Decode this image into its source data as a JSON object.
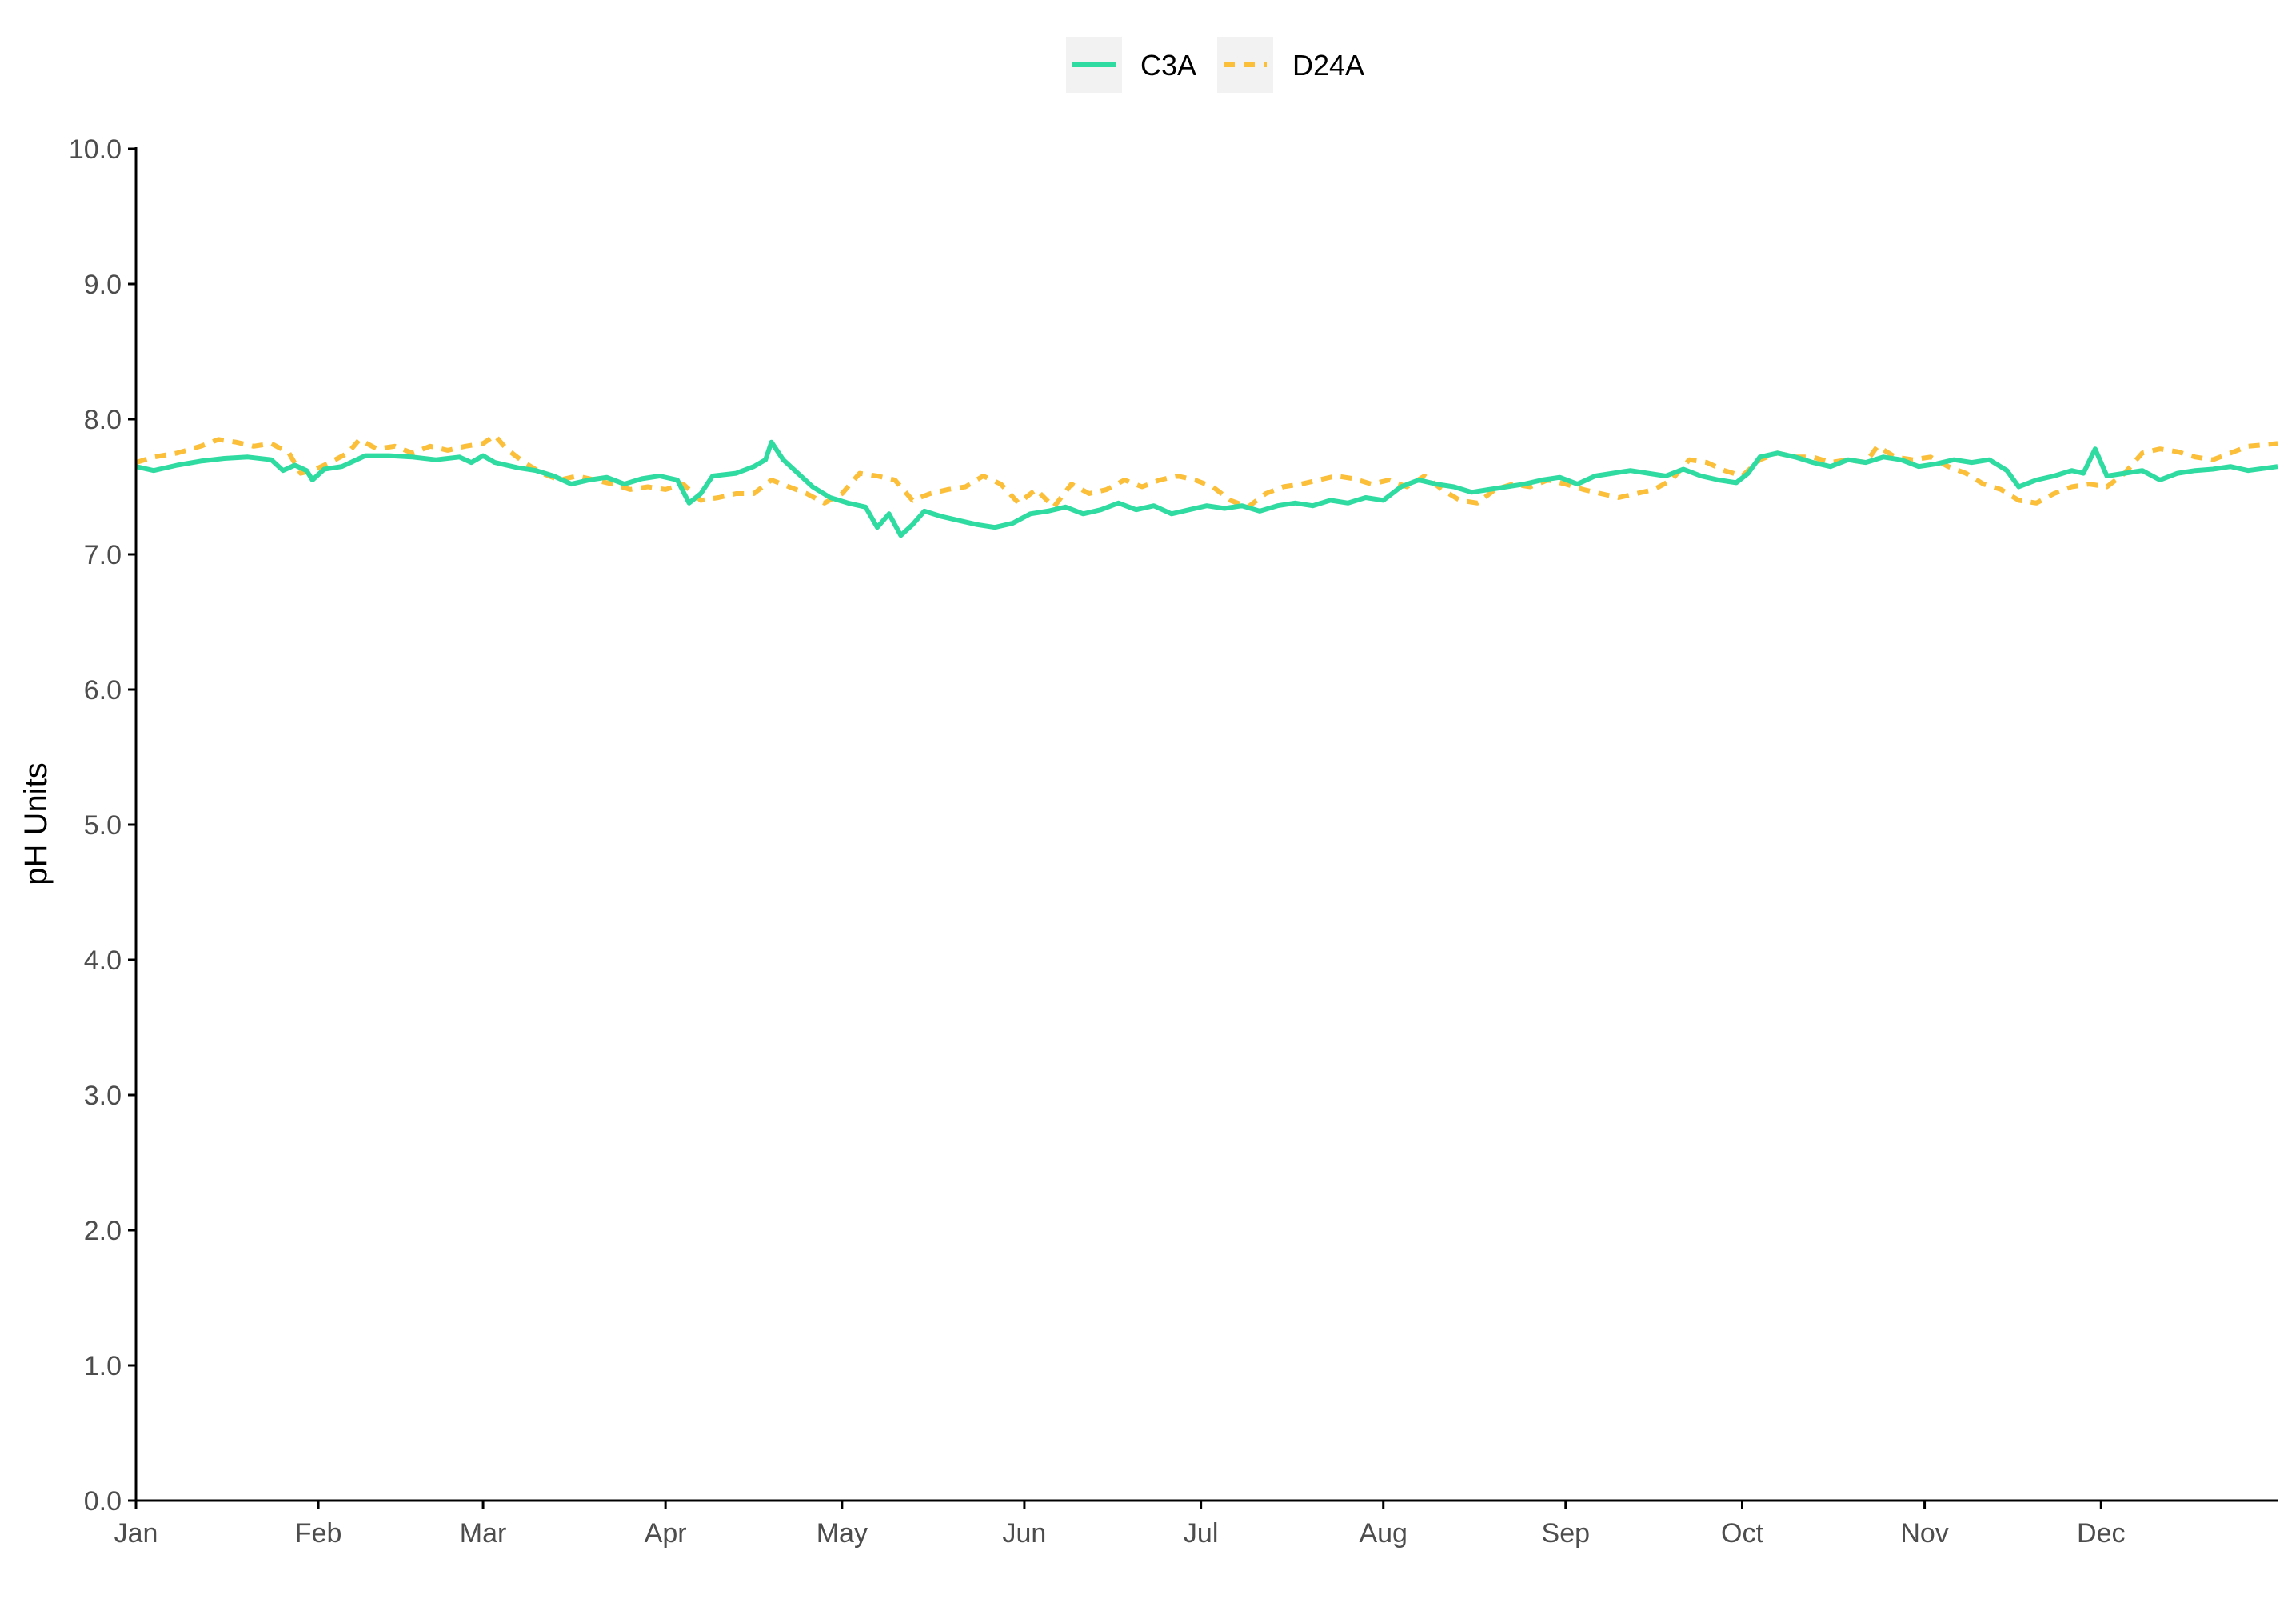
{
  "chart_data": {
    "type": "line",
    "title": "",
    "xlabel": "",
    "ylabel": "pH Units",
    "ylim": [
      0,
      10
    ],
    "yticks": [
      "0.0",
      "1.0",
      "2.0",
      "3.0",
      "4.0",
      "5.0",
      "6.0",
      "7.0",
      "8.0",
      "9.0",
      "10.0"
    ],
    "xlim_day": [
      1,
      365
    ],
    "month_ticks": [
      {
        "label": "Jan",
        "day": 1
      },
      {
        "label": "Feb",
        "day": 32
      },
      {
        "label": "Mar",
        "day": 60
      },
      {
        "label": "Apr",
        "day": 91
      },
      {
        "label": "May",
        "day": 121
      },
      {
        "label": "Jun",
        "day": 152
      },
      {
        "label": "Jul",
        "day": 182
      },
      {
        "label": "Aug",
        "day": 213
      },
      {
        "label": "Sep",
        "day": 244
      },
      {
        "label": "Oct",
        "day": 274
      },
      {
        "label": "Nov",
        "day": 305
      },
      {
        "label": "Dec",
        "day": 335
      }
    ],
    "legend_position": "top",
    "grid": false,
    "series": [
      {
        "name": "C3A",
        "color": "#2fdba0",
        "dash": "solid",
        "points": [
          [
            1,
            7.65
          ],
          [
            4,
            7.62
          ],
          [
            8,
            7.66
          ],
          [
            12,
            7.69
          ],
          [
            16,
            7.71
          ],
          [
            20,
            7.72
          ],
          [
            24,
            7.7
          ],
          [
            26,
            7.62
          ],
          [
            28,
            7.66
          ],
          [
            30,
            7.62
          ],
          [
            31,
            7.55
          ],
          [
            33,
            7.63
          ],
          [
            36,
            7.65
          ],
          [
            40,
            7.73
          ],
          [
            44,
            7.73
          ],
          [
            48,
            7.72
          ],
          [
            52,
            7.7
          ],
          [
            56,
            7.72
          ],
          [
            58,
            7.68
          ],
          [
            60,
            7.73
          ],
          [
            62,
            7.68
          ],
          [
            66,
            7.64
          ],
          [
            69,
            7.62
          ],
          [
            72,
            7.58
          ],
          [
            75,
            7.52
          ],
          [
            78,
            7.55
          ],
          [
            81,
            7.57
          ],
          [
            84,
            7.52
          ],
          [
            87,
            7.56
          ],
          [
            90,
            7.58
          ],
          [
            93,
            7.55
          ],
          [
            95,
            7.38
          ],
          [
            97,
            7.45
          ],
          [
            99,
            7.58
          ],
          [
            103,
            7.6
          ],
          [
            106,
            7.65
          ],
          [
            108,
            7.7
          ],
          [
            109,
            7.83
          ],
          [
            111,
            7.7
          ],
          [
            113,
            7.62
          ],
          [
            116,
            7.5
          ],
          [
            119,
            7.42
          ],
          [
            122,
            7.38
          ],
          [
            125,
            7.35
          ],
          [
            127,
            7.2
          ],
          [
            129,
            7.3
          ],
          [
            131,
            7.14
          ],
          [
            133,
            7.22
          ],
          [
            135,
            7.32
          ],
          [
            138,
            7.28
          ],
          [
            141,
            7.25
          ],
          [
            144,
            7.22
          ],
          [
            147,
            7.2
          ],
          [
            150,
            7.23
          ],
          [
            153,
            7.3
          ],
          [
            156,
            7.32
          ],
          [
            159,
            7.35
          ],
          [
            162,
            7.3
          ],
          [
            165,
            7.33
          ],
          [
            168,
            7.38
          ],
          [
            171,
            7.33
          ],
          [
            174,
            7.36
          ],
          [
            177,
            7.3
          ],
          [
            180,
            7.33
          ],
          [
            183,
            7.36
          ],
          [
            186,
            7.34
          ],
          [
            189,
            7.36
          ],
          [
            192,
            7.32
          ],
          [
            195,
            7.36
          ],
          [
            198,
            7.38
          ],
          [
            201,
            7.36
          ],
          [
            204,
            7.4
          ],
          [
            207,
            7.38
          ],
          [
            210,
            7.42
          ],
          [
            213,
            7.4
          ],
          [
            216,
            7.5
          ],
          [
            219,
            7.55
          ],
          [
            222,
            7.52
          ],
          [
            225,
            7.5
          ],
          [
            228,
            7.46
          ],
          [
            231,
            7.48
          ],
          [
            234,
            7.5
          ],
          [
            237,
            7.52
          ],
          [
            240,
            7.55
          ],
          [
            243,
            7.57
          ],
          [
            246,
            7.52
          ],
          [
            249,
            7.58
          ],
          [
            252,
            7.6
          ],
          [
            255,
            7.62
          ],
          [
            258,
            7.6
          ],
          [
            261,
            7.58
          ],
          [
            264,
            7.63
          ],
          [
            267,
            7.58
          ],
          [
            270,
            7.55
          ],
          [
            273,
            7.53
          ],
          [
            275,
            7.6
          ],
          [
            277,
            7.72
          ],
          [
            280,
            7.75
          ],
          [
            283,
            7.72
          ],
          [
            286,
            7.68
          ],
          [
            289,
            7.65
          ],
          [
            292,
            7.7
          ],
          [
            295,
            7.68
          ],
          [
            298,
            7.72
          ],
          [
            301,
            7.7
          ],
          [
            304,
            7.65
          ],
          [
            307,
            7.67
          ],
          [
            310,
            7.7
          ],
          [
            313,
            7.68
          ],
          [
            316,
            7.7
          ],
          [
            319,
            7.62
          ],
          [
            321,
            7.5
          ],
          [
            324,
            7.55
          ],
          [
            327,
            7.58
          ],
          [
            330,
            7.62
          ],
          [
            332,
            7.6
          ],
          [
            334,
            7.78
          ],
          [
            336,
            7.58
          ],
          [
            339,
            7.6
          ],
          [
            342,
            7.62
          ],
          [
            345,
            7.55
          ],
          [
            348,
            7.6
          ],
          [
            351,
            7.62
          ],
          [
            354,
            7.63
          ],
          [
            357,
            7.65
          ],
          [
            360,
            7.62
          ],
          [
            365,
            7.65
          ]
        ]
      },
      {
        "name": "D24A",
        "color": "#fbbf3a",
        "dash": "dashed",
        "points": [
          [
            1,
            7.68
          ],
          [
            4,
            7.72
          ],
          [
            8,
            7.75
          ],
          [
            12,
            7.8
          ],
          [
            15,
            7.85
          ],
          [
            18,
            7.83
          ],
          [
            21,
            7.8
          ],
          [
            24,
            7.82
          ],
          [
            27,
            7.75
          ],
          [
            29,
            7.6
          ],
          [
            31,
            7.62
          ],
          [
            34,
            7.68
          ],
          [
            37,
            7.75
          ],
          [
            39,
            7.85
          ],
          [
            42,
            7.78
          ],
          [
            45,
            7.8
          ],
          [
            48,
            7.75
          ],
          [
            51,
            7.8
          ],
          [
            54,
            7.77
          ],
          [
            57,
            7.8
          ],
          [
            60,
            7.82
          ],
          [
            62,
            7.88
          ],
          [
            64,
            7.78
          ],
          [
            67,
            7.68
          ],
          [
            70,
            7.6
          ],
          [
            73,
            7.55
          ],
          [
            76,
            7.58
          ],
          [
            79,
            7.55
          ],
          [
            82,
            7.52
          ],
          [
            85,
            7.48
          ],
          [
            88,
            7.5
          ],
          [
            91,
            7.48
          ],
          [
            94,
            7.52
          ],
          [
            97,
            7.4
          ],
          [
            100,
            7.42
          ],
          [
            103,
            7.45
          ],
          [
            106,
            7.45
          ],
          [
            109,
            7.55
          ],
          [
            112,
            7.5
          ],
          [
            115,
            7.45
          ],
          [
            118,
            7.38
          ],
          [
            121,
            7.45
          ],
          [
            124,
            7.6
          ],
          [
            127,
            7.58
          ],
          [
            130,
            7.55
          ],
          [
            133,
            7.4
          ],
          [
            136,
            7.45
          ],
          [
            139,
            7.48
          ],
          [
            142,
            7.5
          ],
          [
            145,
            7.58
          ],
          [
            148,
            7.52
          ],
          [
            151,
            7.38
          ],
          [
            154,
            7.48
          ],
          [
            157,
            7.35
          ],
          [
            160,
            7.52
          ],
          [
            163,
            7.45
          ],
          [
            166,
            7.48
          ],
          [
            169,
            7.55
          ],
          [
            172,
            7.5
          ],
          [
            175,
            7.55
          ],
          [
            178,
            7.58
          ],
          [
            181,
            7.55
          ],
          [
            184,
            7.5
          ],
          [
            187,
            7.4
          ],
          [
            190,
            7.35
          ],
          [
            193,
            7.45
          ],
          [
            196,
            7.5
          ],
          [
            199,
            7.52
          ],
          [
            202,
            7.55
          ],
          [
            205,
            7.58
          ],
          [
            208,
            7.56
          ],
          [
            211,
            7.52
          ],
          [
            214,
            7.55
          ],
          [
            217,
            7.5
          ],
          [
            220,
            7.58
          ],
          [
            223,
            7.48
          ],
          [
            226,
            7.4
          ],
          [
            229,
            7.38
          ],
          [
            232,
            7.48
          ],
          [
            235,
            7.52
          ],
          [
            238,
            7.5
          ],
          [
            241,
            7.55
          ],
          [
            244,
            7.52
          ],
          [
            247,
            7.48
          ],
          [
            250,
            7.45
          ],
          [
            253,
            7.42
          ],
          [
            256,
            7.45
          ],
          [
            259,
            7.48
          ],
          [
            262,
            7.55
          ],
          [
            265,
            7.7
          ],
          [
            268,
            7.68
          ],
          [
            271,
            7.62
          ],
          [
            274,
            7.58
          ],
          [
            277,
            7.7
          ],
          [
            280,
            7.75
          ],
          [
            283,
            7.72
          ],
          [
            286,
            7.72
          ],
          [
            289,
            7.68
          ],
          [
            292,
            7.7
          ],
          [
            295,
            7.68
          ],
          [
            297,
            7.8
          ],
          [
            300,
            7.72
          ],
          [
            303,
            7.7
          ],
          [
            306,
            7.72
          ],
          [
            309,
            7.65
          ],
          [
            312,
            7.6
          ],
          [
            315,
            7.52
          ],
          [
            318,
            7.48
          ],
          [
            321,
            7.4
          ],
          [
            324,
            7.38
          ],
          [
            327,
            7.45
          ],
          [
            330,
            7.5
          ],
          [
            333,
            7.52
          ],
          [
            336,
            7.5
          ],
          [
            339,
            7.6
          ],
          [
            342,
            7.75
          ],
          [
            345,
            7.78
          ],
          [
            348,
            7.76
          ],
          [
            351,
            7.72
          ],
          [
            354,
            7.7
          ],
          [
            357,
            7.75
          ],
          [
            360,
            7.8
          ],
          [
            365,
            7.82
          ]
        ]
      }
    ]
  }
}
